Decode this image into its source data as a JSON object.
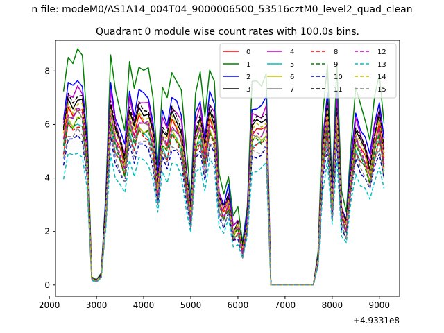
{
  "chart_data": {
    "type": "line",
    "suptitle": "n file: modeM0/AS1A14_004T04_9000006500_53516cztM0_level2_quad_clean",
    "title": "Quadrant 0 module wise count rates with 100.0s bins.",
    "xlabel": "",
    "ylabel": "",
    "x_offset_label": "+4.9331e8",
    "xlim": [
      2130,
      9430
    ],
    "ylim": [
      -0.42,
      9.15
    ],
    "xticks": [
      2000,
      3000,
      4000,
      5000,
      6000,
      7000,
      8000,
      9000
    ],
    "yticks": [
      0,
      2,
      4,
      6,
      8
    ],
    "grid": false,
    "legend_position": "top-right",
    "legend_columns": 4,
    "x": [
      2300,
      2400,
      2500,
      2600,
      2700,
      2800,
      2900,
      3000,
      3100,
      3200,
      3300,
      3400,
      3500,
      3600,
      3700,
      3800,
      3900,
      4000,
      4100,
      4200,
      4300,
      4400,
      4500,
      4600,
      4700,
      4800,
      4900,
      5000,
      5100,
      5200,
      5300,
      5400,
      5500,
      5600,
      5700,
      5800,
      5900,
      6000,
      6100,
      6200,
      6300,
      6400,
      6500,
      6600,
      6700,
      6800,
      6900,
      7000,
      7100,
      7200,
      7300,
      7400,
      7500,
      7600,
      7700,
      7800,
      7900,
      8000,
      8100,
      8200,
      8300,
      8400,
      8500,
      8600,
      8700,
      8800,
      8900,
      9000,
      9100
    ],
    "base_profile": [
      7.15,
      8.6,
      8.35,
      8.72,
      8.55,
      6.25,
      0.3,
      0.2,
      0.45,
      3.6,
      8.55,
      7.2,
      6.6,
      5.85,
      8.25,
      7.3,
      8.25,
      8.05,
      8.0,
      7.0,
      4.6,
      7.35,
      6.9,
      8.0,
      7.7,
      7.2,
      5.2,
      3.35,
      7.2,
      7.85,
      6.3,
      8.15,
      7.6,
      4.05,
      3.45,
      4.15,
      2.5,
      2.85,
      1.7,
      3.0,
      7.5,
      7.6,
      7.55,
      7.9,
      0,
      0,
      0,
      0,
      0,
      0,
      0,
      0,
      0,
      0,
      1.25,
      6.25,
      8.25,
      3.8,
      8.2,
      3.4,
      2.8,
      5.3,
      7.3,
      6.7,
      6.25,
      5.45,
      6.95,
      7.85,
      6.15
    ],
    "series": [
      {
        "name": "0",
        "color": "#ff0000",
        "dash": "solid",
        "scale": 0.76
      },
      {
        "name": "1",
        "color": "#008000",
        "dash": "solid",
        "scale": 1.0
      },
      {
        "name": "2",
        "color": "#0000ff",
        "dash": "solid",
        "scale": 0.88
      },
      {
        "name": "3",
        "color": "#000000",
        "dash": "solid",
        "scale": 0.8
      },
      {
        "name": "4",
        "color": "#bf00bf",
        "dash": "solid",
        "scale": 0.84
      },
      {
        "name": "5",
        "color": "#00bfbf",
        "dash": "solid",
        "scale": 0.7
      },
      {
        "name": "6",
        "color": "#bfbf00",
        "dash": "solid",
        "scale": 0.72
      },
      {
        "name": "7",
        "color": "#808080",
        "dash": "solid",
        "scale": 0.74
      },
      {
        "name": "8",
        "color": "#ff0000",
        "dash": "dashed",
        "scale": 0.69
      },
      {
        "name": "9",
        "color": "#008000",
        "dash": "dashed",
        "scale": 0.71
      },
      {
        "name": "10",
        "color": "#0000bf",
        "dash": "dashed",
        "scale": 0.64
      },
      {
        "name": "11",
        "color": "#000000",
        "dash": "dashed",
        "scale": 0.82
      },
      {
        "name": "12",
        "color": "#bf00bf",
        "dash": "dashed",
        "scale": 0.75
      },
      {
        "name": "13",
        "color": "#00bfbf",
        "dash": "dashed",
        "scale": 0.57
      },
      {
        "name": "14",
        "color": "#bfbf00",
        "dash": "dashed",
        "scale": 0.78
      },
      {
        "name": "15",
        "color": "#808080",
        "dash": "dashed",
        "scale": 0.66
      }
    ]
  }
}
